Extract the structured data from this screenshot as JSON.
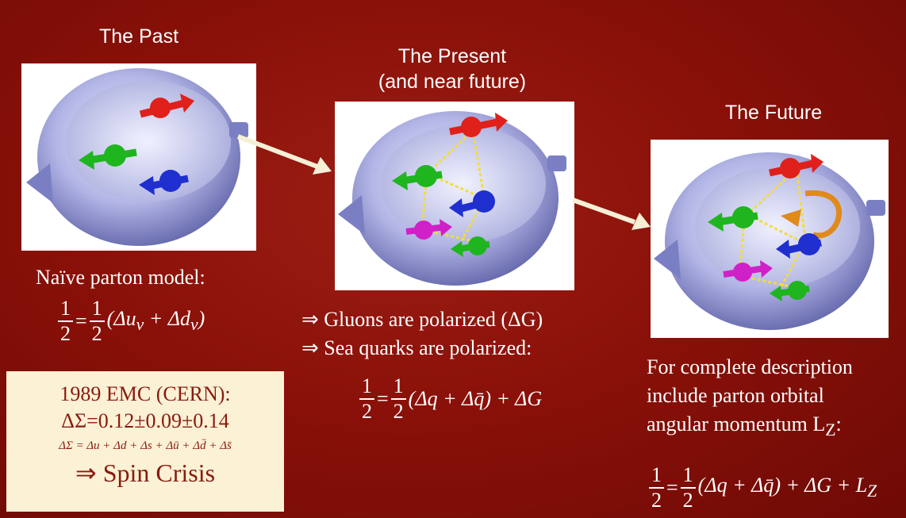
{
  "past": {
    "heading": "The Past",
    "model_label": "Naïve parton model:",
    "eq": {
      "lhs_num": "1",
      "lhs_den": "2",
      "eq_sign": "=",
      "rhs_num": "1",
      "rhs_den": "2",
      "terms": "(Δu<sub>v</sub> + Δd<sub>v</sub>)"
    }
  },
  "present": {
    "heading_line1": "The Present",
    "heading_line2": "(and near future)",
    "bullet1": "⇒ Gluons are polarized (ΔG)",
    "bullet2": "⇒ Sea quarks are polarized:",
    "eq": {
      "lhs_num": "1",
      "lhs_den": "2",
      "eq_sign": "=",
      "rhs_num": "1",
      "rhs_den": "2",
      "terms": "(Δq + Δq̄) + ΔG"
    }
  },
  "future": {
    "heading": "The Future",
    "desc_line1": "For complete description",
    "desc_line2": "include parton orbital",
    "desc_line3": "angular momentum L",
    "desc_sub": "Z",
    "desc_colon": ":",
    "eq": {
      "lhs_num": "1",
      "lhs_den": "2",
      "eq_sign": "=",
      "rhs_num": "1",
      "rhs_den": "2",
      "terms": "(Δq + Δq̄) + ΔG + L<sub>Z</sub>"
    }
  },
  "emc_box": {
    "line1": "1989 EMC (CERN):",
    "line2": "ΔΣ=0.12±0.09±0.14",
    "line3": "ΔΣ = Δu + Δd + Δs + Δū + Δd̄ + Δs̄",
    "line4": "⇒ Spin Crisis"
  },
  "colors": {
    "background": "#8a1109",
    "box": "#fbf1d4",
    "quark_red": "#e0201a",
    "quark_green": "#1fb51f",
    "quark_blue": "#1f2fd0",
    "quark_magenta": "#d020c8",
    "orbital_arrow": "#e08a1a",
    "arrow": "#f5efd6"
  }
}
